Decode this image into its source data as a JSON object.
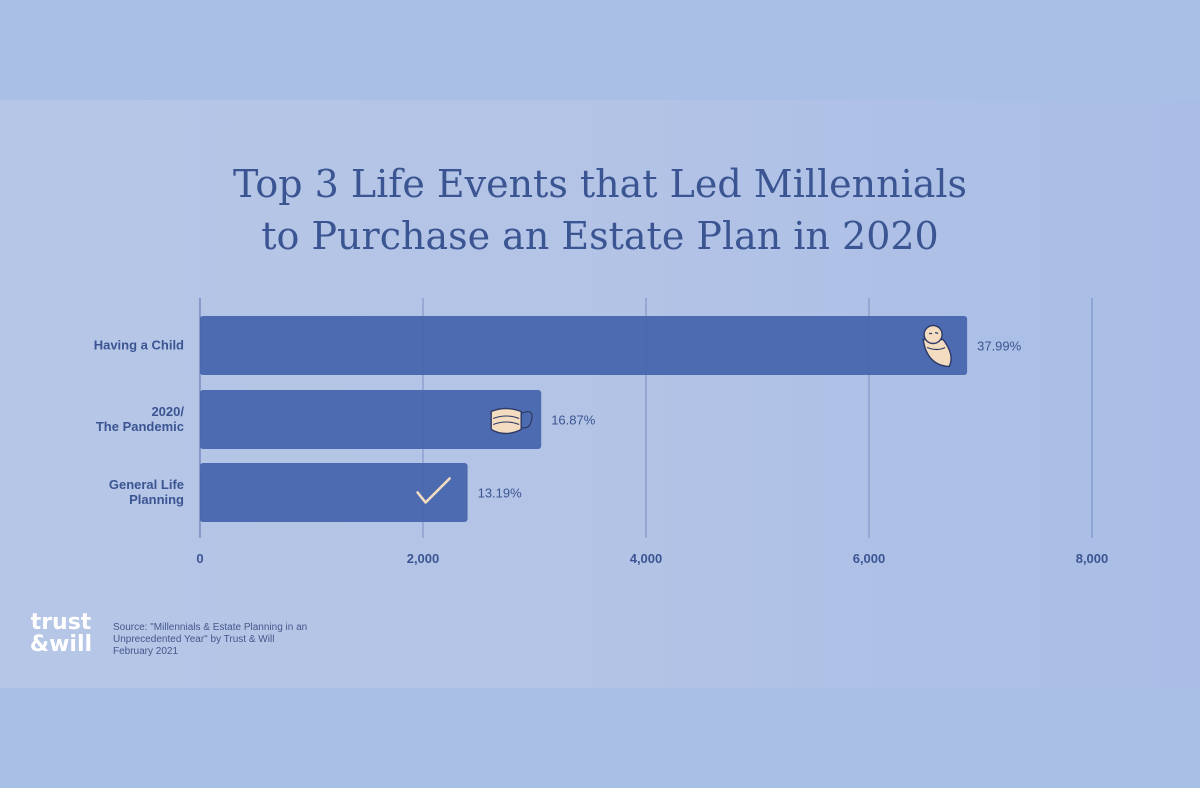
{
  "title_lines": [
    "Top 3 Life Events that Led Millennials",
    "to Purchase an Estate Plan in 2020"
  ],
  "colors": {
    "bar": "#4d6bb0",
    "text": "#3b5592",
    "grid": "#4a64a8",
    "icon_fill": "#f3dcc0",
    "icon_stroke": "#2d3a66"
  },
  "chart_data": {
    "type": "bar",
    "orientation": "horizontal",
    "title": "Top 3 Life Events that Led Millennials to Purchase an Estate Plan in 2020",
    "categories": [
      [
        "Having a Child"
      ],
      [
        "2020/",
        "The Pandemic"
      ],
      [
        "General Life",
        "Planning"
      ]
    ],
    "values": [
      6880,
      3060,
      2400
    ],
    "data_labels": [
      "37.99%",
      "16.87%",
      "13.19%"
    ],
    "icons": [
      "baby-icon",
      "face-mask-icon",
      "checkmark-icon"
    ],
    "xlim": [
      0,
      8000
    ],
    "xticks": [
      0,
      2000,
      4000,
      6000,
      8000
    ],
    "xtick_labels": [
      "0",
      "2,000",
      "4,000",
      "6,000",
      "8,000"
    ],
    "grid": "vertical"
  },
  "footer": {
    "logo_line1": "trust",
    "logo_line2": "&will",
    "source_lines": [
      "Source: \"Millennials & Estate Planning in an",
      "Unprecedented Year\" by Trust & Will",
      "February 2021"
    ]
  }
}
